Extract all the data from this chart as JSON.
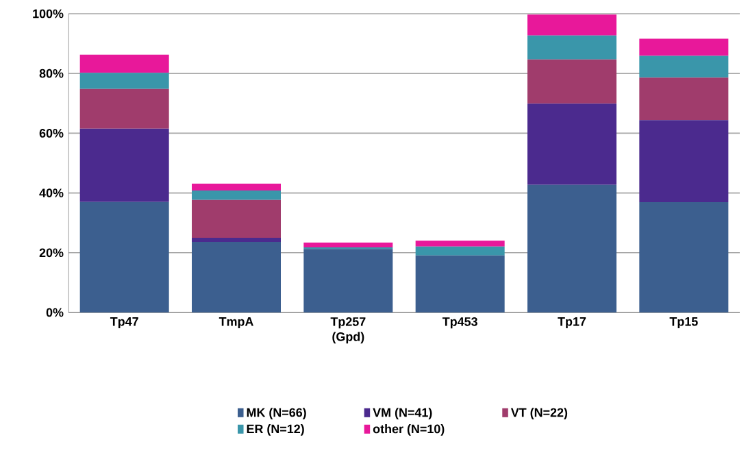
{
  "chart_data": {
    "type": "bar",
    "stacked": true,
    "categories": [
      "Tp47",
      "TmpA",
      "Tp257 (Gpd)",
      "Tp453",
      "Tp17",
      "Tp15"
    ],
    "series": [
      {
        "name": "MK (N=66)",
        "color": "#3c5f8f",
        "values": [
          37.0,
          23.6,
          21.3,
          19.1,
          42.7,
          36.9
        ]
      },
      {
        "name": "VM (N=41)",
        "color": "#4b2a8e",
        "values": [
          24.5,
          1.4,
          0,
          0,
          27.2,
          27.5
        ]
      },
      {
        "name": "VT (N=22)",
        "color": "#a03c6c",
        "values": [
          13.3,
          12.7,
          0,
          0,
          14.8,
          14.2
        ]
      },
      {
        "name": "ER (N=12)",
        "color": "#3a96aa",
        "values": [
          5.4,
          3.1,
          0.5,
          3.0,
          8.0,
          7.3
        ]
      },
      {
        "name": "other (N=10)",
        "color": "#e8189a",
        "values": [
          6.1,
          2.3,
          1.6,
          1.9,
          7.0,
          5.7
        ]
      }
    ],
    "ylim": [
      0,
      100
    ],
    "yticks": [
      {
        "value": 0,
        "label": "0%"
      },
      {
        "value": 20,
        "label": "20%"
      },
      {
        "value": 40,
        "label": "40%"
      },
      {
        "value": 60,
        "label": "60%"
      },
      {
        "value": 80,
        "label": "80%"
      },
      {
        "value": 100,
        "label": "100%"
      }
    ],
    "grid": "y",
    "legend": "bottom"
  }
}
